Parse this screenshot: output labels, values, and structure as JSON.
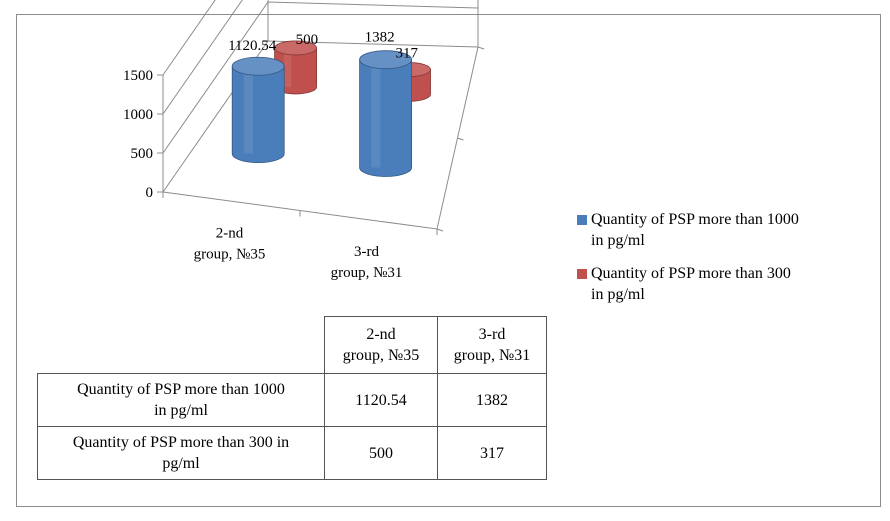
{
  "chart_data": {
    "type": "bar",
    "style": "3d-cylinder",
    "categories": [
      [
        "2-nd",
        "group, №35"
      ],
      [
        "3-rd",
        "group, №31"
      ]
    ],
    "series": [
      {
        "name": "Quantity of  PSP more than  1000 in pg/ml",
        "name_lines": [
          "Quantity of  PSP more than  1000",
          "in pg/ml"
        ],
        "color": "#4a7ebb",
        "values": [
          1120.54,
          1382
        ],
        "labels": [
          "1120.54",
          "1382"
        ]
      },
      {
        "name": "Quantity of  PSP more than  300 in pg/ml",
        "name_lines": [
          "Quantity of  PSP more than  300",
          "in pg/ml"
        ],
        "color": "#c0504d",
        "values": [
          500,
          317
        ],
        "labels": [
          "500",
          "317"
        ]
      }
    ],
    "y_ticks": [
      "0",
      "500",
      "1000",
      "1500"
    ],
    "ylim": [
      0,
      1500
    ],
    "legend_position": "right",
    "grid": true
  },
  "table": {
    "headers": [
      [
        "2-nd",
        "group, №35"
      ],
      [
        "3-rd",
        "group, №31"
      ]
    ],
    "rows": [
      {
        "label_lines": [
          "Quantity of  PSP more than  1000",
          "in pg/ml"
        ],
        "values": [
          "1120.54",
          "1382"
        ]
      },
      {
        "label_lines": [
          "Quantity of  PSP more than  300 in",
          "pg/ml"
        ],
        "values": [
          "500",
          "317"
        ]
      }
    ]
  }
}
